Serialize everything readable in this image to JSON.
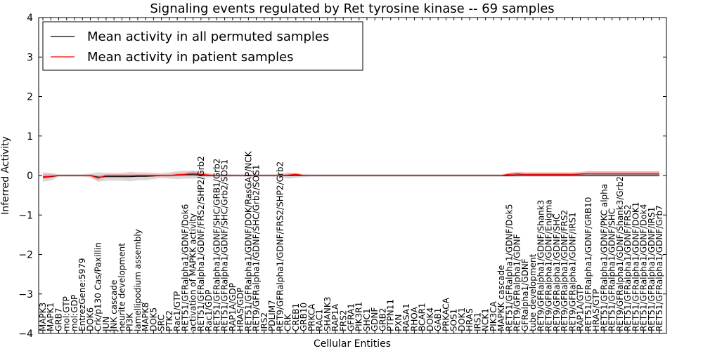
{
  "chart_data": {
    "type": "line",
    "title": "Signaling events regulated by Ret tyrosine kinase -- 69 samples",
    "xlabel": "Cellular Entities",
    "ylabel": "Inferred Activity",
    "ylim": [
      -4,
      4
    ],
    "yticks": [
      -4,
      -3,
      -2,
      -1,
      0,
      1,
      2,
      3,
      4
    ],
    "ytick_labels": [
      "−4",
      "−3",
      "−2",
      "−1",
      "0",
      "1",
      "2",
      "3",
      "4"
    ],
    "grid": false,
    "legend_position": "top-left",
    "categories": [
      "MAPK3",
      "MAPK1",
      "GRB7",
      "mol:GTP",
      "mol:GDP",
      "EntrezGene:5979",
      "DOK6",
      "Crk/p130 Cas/Paxillin",
      "JUN",
      "JNK cascade",
      "neurite development",
      "PI3K",
      "lamellipodium assembly",
      "MAPK8",
      "DOK5",
      "SRC",
      "PTK2",
      "Rac1/GTP",
      "RET51/GFRalpha1/GDNF/Dok6",
      "activation of MAPKK activity",
      "RET51/GFRalpha1/GDNF/FRS2/SHP2/Grb2",
      "Rac1/GDP",
      "RET51/GFRalpha1/GDNF/SHC/GRB1/Grb2",
      "RET51/GFRalpha1/GDNF/SHC/Grb2/SOS1",
      "RAP1A/GDP",
      "HRAS/GDP",
      "RET51/GFRalpha1/GDNF/DOK/RasGAP/NCK",
      "RET9/GFRalpha1/GDNF/SHC/Grb2/SOS1",
      "IRS2",
      "PDLIM7",
      "RET9/GFRalpha1/GDNF/FRS2/SHP2/Grb2",
      "CRK",
      "CREB1",
      "GRB10",
      "PRKCA",
      "RAC1",
      "SHANK3",
      "RAP1A",
      "FRS2",
      "GFRA1",
      "PIK3R1",
      "SHC1",
      "GDNF",
      "GRB2",
      "PTPN11",
      "PXN",
      "RASA1",
      "RHOA",
      "BCAR1",
      "DOK4",
      "GAB1",
      "PRKACA",
      "SOS1",
      "DOK1",
      "HRAS",
      "IRS1",
      "NCK1",
      "PIK3CA",
      "MAPKK cascade",
      "RET51/GFRalpha1/GDNF/Dok5",
      "RET9/GFRalpha1/GDNF",
      "GFRalpha1/GDNF",
      "tube development",
      "RET9/GFRalpha1/GDNF/Shank3",
      "RET9/GFRalpha1/GDNF/Enigma",
      "RET9/GFRalpha1/GDNF/SHC",
      "RET9/GFRalpha1/GDNF/FRS2",
      "RET9/GFRalpha1/GDNF/IRS1",
      "RAP1A/GTP",
      "RET51/GFRalpha1/GDNF/GRB10",
      "HRAS/GTP",
      "RET51/GFRalpha1/GDNF/PKC alpha",
      "RET51/GFRalpha1/GDNF/SHC",
      "RET9/GFRalpha1/GDNF/Shank3/Grb2",
      "RET51/GFRalpha1/GDNF/FRS2",
      "RET51/GFRalpha1/GDNF/DOK1",
      "RET51/GFRalpha1/GDNF/Dok4",
      "RET51/GFRalpha1/GDNF/IRS1",
      "RET51/GFRalpha1/GDNF/Grb7"
    ],
    "series": [
      {
        "name": "Mean activity in all permuted samples",
        "color": "#000000",
        "values": [
          -0.04,
          -0.03,
          0.0,
          0.0,
          0.0,
          0.0,
          0.0,
          -0.04,
          -0.03,
          -0.03,
          -0.03,
          -0.03,
          -0.02,
          -0.02,
          -0.01,
          0.0,
          0.0,
          0.01,
          0.02,
          0.02,
          0.01,
          0.0,
          0.0,
          0.0,
          0.0,
          0.0,
          0.0,
          0.0,
          0.0,
          0.0,
          0.0,
          0.0,
          0.0,
          0.0,
          0.0,
          0.0,
          0.0,
          0.0,
          0.0,
          0.0,
          0.0,
          0.0,
          0.0,
          0.0,
          0.0,
          0.0,
          0.0,
          0.0,
          0.0,
          0.0,
          0.0,
          0.0,
          0.0,
          0.0,
          0.0,
          0.0,
          0.0,
          0.0,
          0.0,
          0.0,
          0.01,
          0.01,
          0.01,
          0.01,
          0.01,
          0.01,
          0.01,
          0.01,
          0.01,
          0.01,
          0.01,
          0.01,
          0.01,
          0.01,
          0.01,
          0.01,
          0.01,
          0.01,
          0.01
        ],
        "band": [
          0.12,
          0.1,
          0.03,
          0.03,
          0.03,
          0.03,
          0.05,
          0.12,
          0.1,
          0.1,
          0.1,
          0.12,
          0.1,
          0.1,
          0.08,
          0.06,
          0.08,
          0.1,
          0.1,
          0.1,
          0.08,
          0.05,
          0.04,
          0.04,
          0.03,
          0.03,
          0.03,
          0.03,
          0.03,
          0.03,
          0.04,
          0.08,
          0.06,
          0.04,
          0.03,
          0.03,
          0.03,
          0.03,
          0.03,
          0.03,
          0.03,
          0.03,
          0.03,
          0.03,
          0.03,
          0.03,
          0.03,
          0.03,
          0.03,
          0.03,
          0.03,
          0.03,
          0.03,
          0.03,
          0.03,
          0.03,
          0.03,
          0.03,
          0.03,
          0.04,
          0.05,
          0.04,
          0.04,
          0.04,
          0.04,
          0.04,
          0.04,
          0.04,
          0.04,
          0.04,
          0.04,
          0.04,
          0.04,
          0.04,
          0.04,
          0.04,
          0.04,
          0.04,
          0.04
        ],
        "band_color": "#bfbfbf"
      },
      {
        "name": "Mean activity in patient samples",
        "color": "#ff0000",
        "values": [
          -0.03,
          -0.02,
          0.0,
          0.0,
          0.0,
          0.0,
          0.0,
          -0.06,
          0.0,
          0.0,
          0.0,
          0.0,
          0.0,
          0.0,
          0.0,
          0.0,
          0.0,
          0.02,
          0.03,
          0.05,
          0.03,
          0.01,
          0.0,
          0.0,
          0.0,
          0.0,
          0.0,
          0.0,
          0.0,
          0.0,
          0.0,
          0.01,
          0.03,
          0.0,
          0.0,
          0.0,
          0.0,
          0.0,
          0.0,
          0.0,
          0.0,
          0.0,
          0.0,
          0.0,
          0.0,
          0.0,
          0.0,
          0.0,
          0.0,
          0.0,
          0.0,
          0.0,
          0.0,
          0.0,
          0.0,
          0.0,
          0.0,
          0.0,
          0.0,
          0.03,
          0.04,
          0.03,
          0.03,
          0.03,
          0.03,
          0.03,
          0.03,
          0.03,
          0.04,
          0.05,
          0.05,
          0.05,
          0.05,
          0.05,
          0.05,
          0.05,
          0.05,
          0.05,
          0.05
        ],
        "band": [
          0.06,
          0.05,
          0.02,
          0.02,
          0.02,
          0.02,
          0.03,
          0.06,
          0.03,
          0.03,
          0.03,
          0.03,
          0.03,
          0.03,
          0.03,
          0.03,
          0.03,
          0.04,
          0.05,
          0.06,
          0.05,
          0.03,
          0.02,
          0.02,
          0.02,
          0.02,
          0.02,
          0.02,
          0.02,
          0.02,
          0.02,
          0.03,
          0.04,
          0.02,
          0.02,
          0.02,
          0.02,
          0.02,
          0.02,
          0.02,
          0.02,
          0.02,
          0.02,
          0.02,
          0.02,
          0.02,
          0.02,
          0.02,
          0.02,
          0.02,
          0.02,
          0.02,
          0.02,
          0.02,
          0.02,
          0.02,
          0.02,
          0.02,
          0.02,
          0.04,
          0.05,
          0.05,
          0.05,
          0.05,
          0.05,
          0.05,
          0.05,
          0.05,
          0.05,
          0.06,
          0.06,
          0.06,
          0.06,
          0.06,
          0.06,
          0.06,
          0.06,
          0.06,
          0.06
        ],
        "band_color": "#f09090"
      }
    ]
  }
}
